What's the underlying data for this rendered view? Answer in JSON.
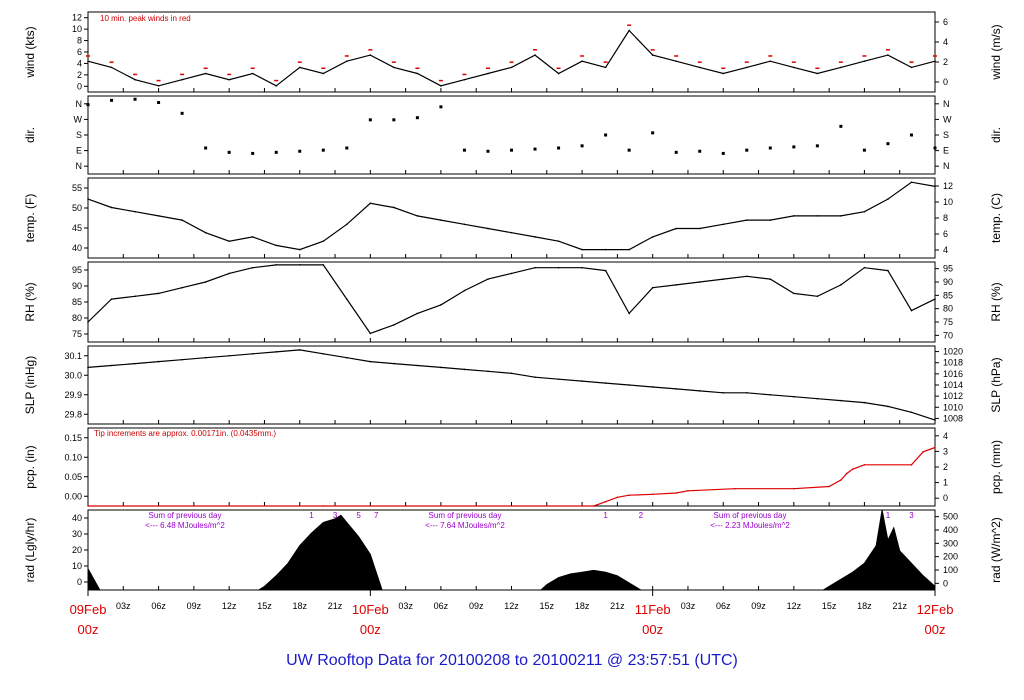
{
  "title": "UW Rooftop Data for 20100208  to  20100211 @ 23:57:51  (UTC)",
  "colors": {
    "peak": "#dd0000",
    "precip": "#dd0000",
    "note": "#cc0000",
    "sum": "#9900cc",
    "date": "#dd0000",
    "title": "#1a1acc"
  },
  "x_axis": {
    "hours_ticks": [
      "03z",
      "06z",
      "09z",
      "12z",
      "15z",
      "18z",
      "21z",
      "10Feb",
      "03z",
      "06z",
      "09z",
      "12z",
      "15z",
      "18z",
      "21z",
      "11Feb",
      "03z",
      "06z",
      "09z",
      "12z",
      "15z",
      "18z",
      "21z",
      "12Feb"
    ],
    "date_labels": [
      {
        "date": "09Feb",
        "hour": "00z",
        "pos": 0
      },
      {
        "date": "10Feb",
        "hour": "00z",
        "pos": 24
      },
      {
        "date": "11Feb",
        "hour": "00z",
        "pos": 48
      },
      {
        "date": "12Feb",
        "hour": "00z",
        "pos": 72
      }
    ]
  },
  "chart_data": [
    {
      "key": "wind",
      "type": "line",
      "ylabel": "wind (kts)",
      "y2label": "wind (m/s)",
      "ylim": [
        0,
        13
      ],
      "yticks": [
        "0",
        "2",
        "4",
        "6",
        "8",
        "10",
        "12"
      ],
      "y2ticks": [
        "0",
        "2",
        "4",
        "6"
      ],
      "annotation": "10 min. peak winds in red",
      "x": [
        0,
        2,
        4,
        6,
        8,
        10,
        12,
        14,
        16,
        18,
        20,
        22,
        24,
        26,
        28,
        30,
        32,
        34,
        36,
        38,
        40,
        42,
        44,
        46,
        48,
        50,
        52,
        54,
        56,
        58,
        60,
        62,
        64,
        66,
        68,
        70,
        72
      ],
      "series": [
        {
          "values": [
            5,
            4,
            2,
            1,
            2,
            3,
            2,
            3,
            1,
            4,
            3,
            5,
            6,
            4,
            3,
            1,
            2,
            3,
            4,
            6,
            3,
            5,
            4,
            10,
            6,
            5,
            4,
            3,
            4,
            5,
            4,
            3,
            4,
            5,
            6,
            4,
            5
          ]
        }
      ]
    },
    {
      "key": "dir",
      "type": "scatter",
      "ylabel": "dir.",
      "y2label": "dir.",
      "ylim": [
        0,
        360
      ],
      "yticks": [
        "N",
        "E",
        "S",
        "W",
        "N"
      ],
      "y2ticks": [
        "N",
        "E",
        "S",
        "W",
        "N"
      ],
      "x": [
        0,
        2,
        4,
        6,
        8,
        10,
        12,
        14,
        16,
        18,
        20,
        22,
        24,
        26,
        28,
        30,
        32,
        34,
        36,
        38,
        40,
        42,
        44,
        46,
        48,
        50,
        52,
        54,
        56,
        58,
        60,
        62,
        64,
        66,
        68,
        70,
        72
      ],
      "series": [
        {
          "values": [
            320,
            340,
            345,
            330,
            280,
            120,
            100,
            95,
            100,
            105,
            110,
            120,
            250,
            250,
            260,
            310,
            110,
            105,
            110,
            115,
            120,
            130,
            180,
            110,
            190,
            100,
            105,
            95,
            110,
            120,
            125,
            130,
            220,
            110,
            140,
            180,
            120
          ]
        }
      ]
    },
    {
      "key": "temp",
      "type": "line",
      "ylabel": "temp. (F)",
      "y2label": "temp. (C)",
      "ylim": [
        36,
        55
      ],
      "yticks": [
        "40",
        "45",
        "50",
        "55"
      ],
      "y2ticks": [
        "4",
        "6",
        "8",
        "10",
        "12"
      ],
      "x": [
        0,
        2,
        4,
        6,
        8,
        10,
        12,
        14,
        16,
        18,
        20,
        22,
        24,
        26,
        28,
        30,
        32,
        34,
        36,
        38,
        40,
        42,
        44,
        46,
        48,
        50,
        52,
        54,
        56,
        58,
        60,
        62,
        64,
        66,
        68,
        70,
        72
      ],
      "series": [
        {
          "values": [
            50,
            48,
            47,
            46,
            45,
            42,
            40,
            41,
            39,
            38,
            40,
            44,
            49,
            48,
            46,
            45,
            44,
            43,
            42,
            41,
            40,
            38,
            38,
            38,
            41,
            43,
            43,
            44,
            45,
            45,
            46,
            46,
            46,
            47,
            50,
            54,
            53
          ]
        }
      ]
    },
    {
      "key": "rh",
      "type": "line",
      "ylabel": "RH (%)",
      "y2label": "RH (%)",
      "ylim": [
        70,
        98
      ],
      "yticks": [
        "75",
        "80",
        "85",
        "90",
        "95"
      ],
      "y2ticks": [
        "70",
        "75",
        "80",
        "85",
        "90",
        "95"
      ],
      "x": [
        0,
        2,
        4,
        6,
        8,
        10,
        12,
        14,
        16,
        18,
        20,
        22,
        24,
        26,
        28,
        30,
        32,
        34,
        36,
        38,
        40,
        42,
        44,
        46,
        48,
        50,
        52,
        54,
        56,
        58,
        60,
        62,
        64,
        66,
        68,
        70,
        72
      ],
      "series": [
        {
          "values": [
            77,
            85,
            86,
            87,
            89,
            91,
            94,
            96,
            97,
            97,
            97,
            85,
            73,
            76,
            80,
            83,
            88,
            92,
            94,
            96,
            96,
            96,
            95,
            80,
            89,
            90,
            91,
            92,
            93,
            92,
            87,
            86,
            90,
            96,
            95,
            81,
            85
          ]
        }
      ]
    },
    {
      "key": "slp",
      "type": "line",
      "ylabel": "SLP (inHg)",
      "y2label": "SLP (hPa)",
      "ylim": [
        29.76,
        30.16
      ],
      "yticks": [
        "29.8",
        "29.9",
        "30.0",
        "30.1"
      ],
      "y2ticks": [
        "1008",
        "1010",
        "1012",
        "1014",
        "1016",
        "1018",
        "1020"
      ],
      "x": [
        0,
        2,
        4,
        6,
        8,
        10,
        12,
        14,
        16,
        18,
        20,
        22,
        24,
        26,
        28,
        30,
        32,
        34,
        36,
        38,
        40,
        42,
        44,
        46,
        48,
        50,
        52,
        54,
        56,
        58,
        60,
        62,
        64,
        66,
        68,
        70,
        72
      ],
      "series": [
        {
          "values": [
            30.05,
            30.06,
            30.07,
            30.08,
            30.09,
            30.1,
            30.11,
            30.12,
            30.13,
            30.14,
            30.12,
            30.1,
            30.08,
            30.07,
            30.06,
            30.05,
            30.04,
            30.03,
            30.02,
            30.0,
            29.99,
            29.98,
            29.97,
            29.96,
            29.95,
            29.94,
            29.93,
            29.92,
            29.92,
            29.91,
            29.9,
            29.89,
            29.88,
            29.87,
            29.85,
            29.82,
            29.78
          ]
        }
      ]
    },
    {
      "key": "pcp",
      "type": "line",
      "ylabel": "pcp. (in)",
      "y2label": "pcp. (mm)",
      "ylim": [
        0,
        0.18
      ],
      "yticks": [
        "0.00",
        "0.05",
        "0.10",
        "0.15"
      ],
      "y2ticks": [
        "0",
        "1",
        "2",
        "3",
        "4"
      ],
      "annotation": "Tip increments are approx. 0.00171in. (0.0435mm.)",
      "x": [
        0,
        20,
        43,
        44,
        45,
        46,
        48,
        50,
        51,
        55,
        60,
        63,
        64,
        64.5,
        65,
        66,
        70,
        71,
        72
      ],
      "series": [
        {
          "values": [
            0,
            0,
            0,
            0.01,
            0.02,
            0.025,
            0.027,
            0.03,
            0.035,
            0.04,
            0.04,
            0.045,
            0.06,
            0.075,
            0.085,
            0.095,
            0.095,
            0.125,
            0.135
          ]
        }
      ]
    },
    {
      "key": "rad",
      "type": "area",
      "ylabel": "rad (Lgly/hr)",
      "y2label": "rad (W/m^2)",
      "ylim": [
        0,
        45
      ],
      "yticks": [
        "0",
        "10",
        "20",
        "30",
        "40"
      ],
      "y2ticks": [
        "0",
        "100",
        "200",
        "300",
        "400",
        "500"
      ],
      "annotations": [
        {
          "line1": "Sum of previous day",
          "line2": "<--- 6.48 MJoules/m^2"
        },
        {
          "line1": "Sum of previous day",
          "line2": "<--- 7.64 MJoules/m^2"
        },
        {
          "line1": "Sum of previous day",
          "line2": "<--- 2.23 MJoules/m^2"
        }
      ],
      "hour_marks": [
        {
          "label": "1",
          "x": 19
        },
        {
          "label": "3",
          "x": 21
        },
        {
          "label": "5",
          "x": 23
        },
        {
          "label": "7",
          "x": 24.5
        },
        {
          "label": "1",
          "x": 44
        },
        {
          "label": "2",
          "x": 47
        },
        {
          "label": "1",
          "x": 68
        },
        {
          "label": "3",
          "x": 70
        }
      ],
      "x": [
        0,
        1,
        14.5,
        15,
        16,
        17,
        18,
        19,
        20,
        21,
        21.5,
        22,
        23,
        24,
        25,
        38.5,
        39,
        40,
        41,
        42,
        43,
        44,
        45,
        46,
        47,
        62.5,
        63,
        64,
        65,
        66,
        67,
        67.5,
        68,
        68.5,
        69,
        70,
        71,
        72
      ],
      "series": [
        {
          "values": [
            12,
            0,
            0,
            2,
            8,
            15,
            25,
            32,
            38,
            40,
            42,
            38,
            30,
            20,
            0,
            0,
            3,
            7,
            9,
            10,
            11,
            10,
            8,
            4,
            0,
            0,
            2,
            6,
            10,
            15,
            25,
            45,
            28,
            35,
            22,
            15,
            8,
            2
          ]
        }
      ]
    }
  ]
}
